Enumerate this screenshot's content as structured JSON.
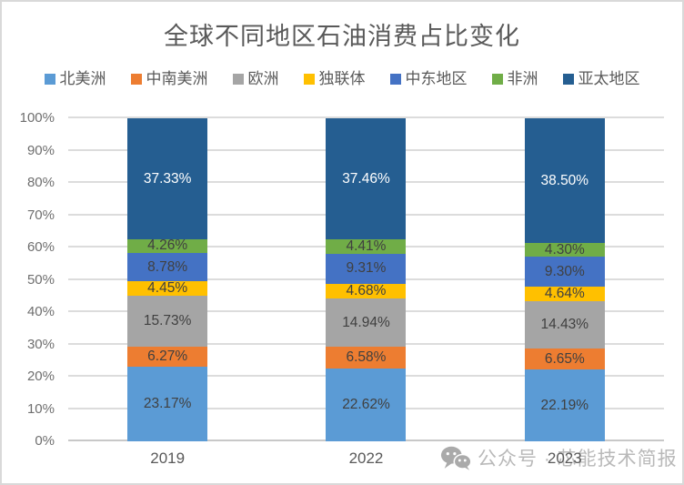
{
  "title": "全球不同地区石油消费占比变化",
  "watermark": {
    "text": "公众号 · 芯能技术简报",
    "icon": "wechat-icon"
  },
  "chart_data": {
    "type": "bar",
    "stacked": true,
    "percent_stacked": true,
    "title": "全球不同地区石油消费占比变化",
    "categories": [
      "2019",
      "2022",
      "2023"
    ],
    "series": [
      {
        "name": "北美洲",
        "color": "#5B9BD5",
        "label_color": "#404040",
        "values": [
          23.17,
          22.62,
          22.19
        ]
      },
      {
        "name": "中南美洲",
        "color": "#ED7D31",
        "label_color": "#404040",
        "values": [
          6.27,
          6.58,
          6.65
        ]
      },
      {
        "name": "欧洲",
        "color": "#A5A5A5",
        "label_color": "#404040",
        "values": [
          15.73,
          14.94,
          14.43
        ]
      },
      {
        "name": "独联体",
        "color": "#FFC000",
        "label_color": "#404040",
        "values": [
          4.45,
          4.68,
          4.64
        ]
      },
      {
        "name": "中东地区",
        "color": "#4472C4",
        "label_color": "#404040",
        "values": [
          8.78,
          9.31,
          9.3
        ]
      },
      {
        "name": "非洲",
        "color": "#70AD47",
        "label_color": "#404040",
        "values": [
          4.26,
          4.41,
          4.3
        ]
      },
      {
        "name": "亚太地区",
        "color": "#255E91",
        "label_color": "#FFFFFF",
        "values": [
          37.33,
          37.46,
          38.5
        ]
      }
    ],
    "value_suffix": "%",
    "value_decimals": 2,
    "yticks": [
      "0%",
      "10%",
      "20%",
      "30%",
      "40%",
      "50%",
      "60%",
      "70%",
      "80%",
      "90%",
      "100%"
    ],
    "ylim": [
      0,
      100
    ],
    "grid": true,
    "legend_position": "top"
  }
}
